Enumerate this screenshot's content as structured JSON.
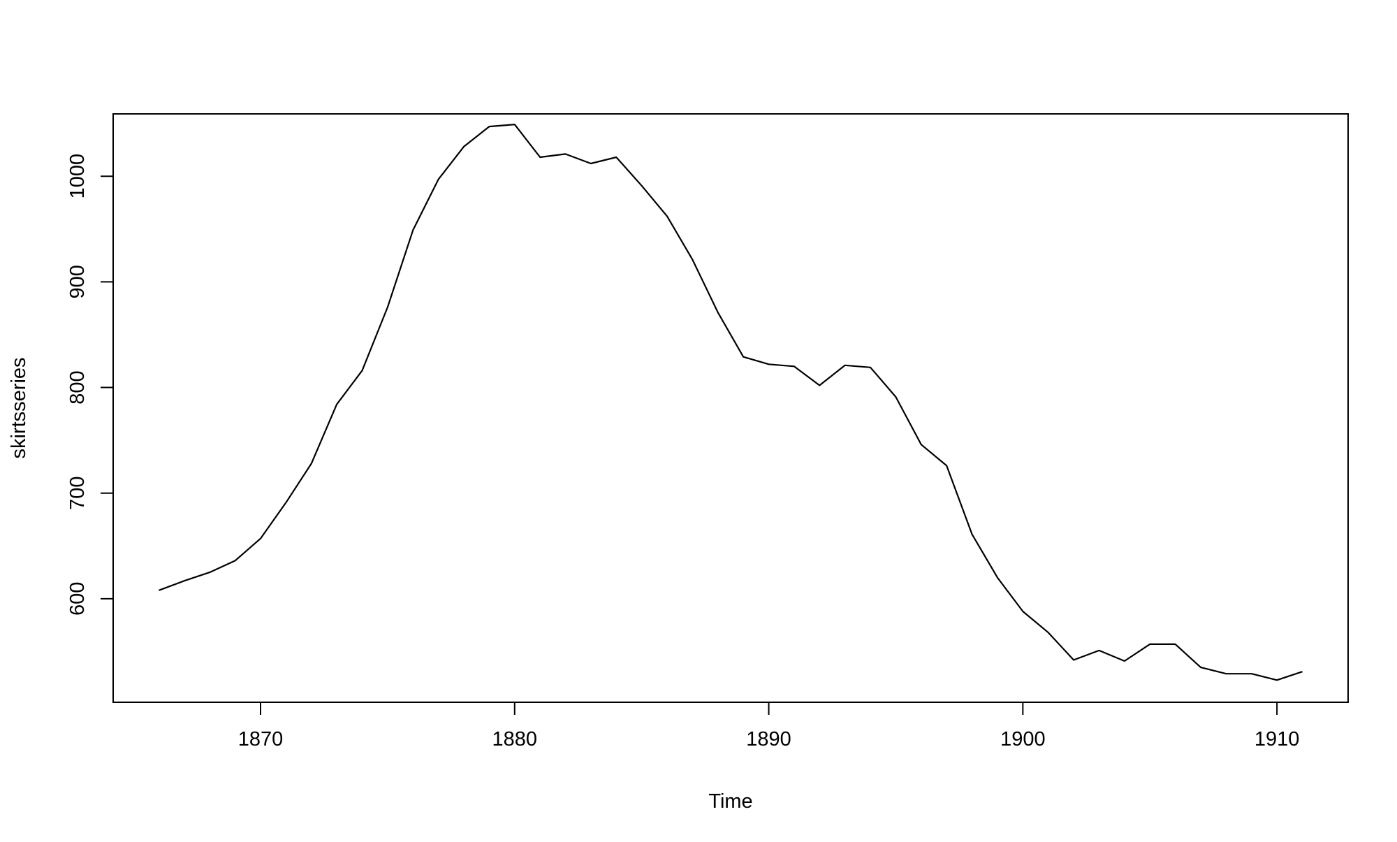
{
  "chart_data": {
    "type": "line",
    "title": "",
    "xlabel": "Time",
    "ylabel": "skirtsseries",
    "xlim": [
      1864.2,
      1912.8
    ],
    "ylim": [
      502,
      1059
    ],
    "x_ticks": [
      1870,
      1880,
      1890,
      1900,
      1910
    ],
    "y_ticks": [
      600,
      700,
      800,
      900,
      1000
    ],
    "grid": false,
    "legend": "none",
    "line_color": "#000000",
    "series": [
      {
        "x": [
          1866,
          1867,
          1868,
          1869,
          1870,
          1871,
          1872,
          1873,
          1874,
          1875,
          1876,
          1877,
          1878,
          1879,
          1880,
          1881,
          1882,
          1883,
          1884,
          1885,
          1886,
          1887,
          1888,
          1889,
          1890,
          1891,
          1892,
          1893,
          1894,
          1895,
          1896,
          1897,
          1898,
          1899,
          1900,
          1901,
          1902,
          1903,
          1904,
          1905,
          1906,
          1907,
          1908,
          1909,
          1910,
          1911
        ],
        "values": [
          608,
          617,
          625,
          636,
          657,
          691,
          728,
          784,
          816,
          876,
          949,
          997,
          1028,
          1047,
          1049,
          1018,
          1021,
          1012,
          1018,
          991,
          962,
          921,
          871,
          829,
          822,
          820,
          802,
          821,
          819,
          791,
          746,
          726,
          661,
          620,
          588,
          568,
          542,
          551,
          541,
          557,
          557,
          535,
          529,
          529,
          523,
          531
        ]
      }
    ]
  }
}
